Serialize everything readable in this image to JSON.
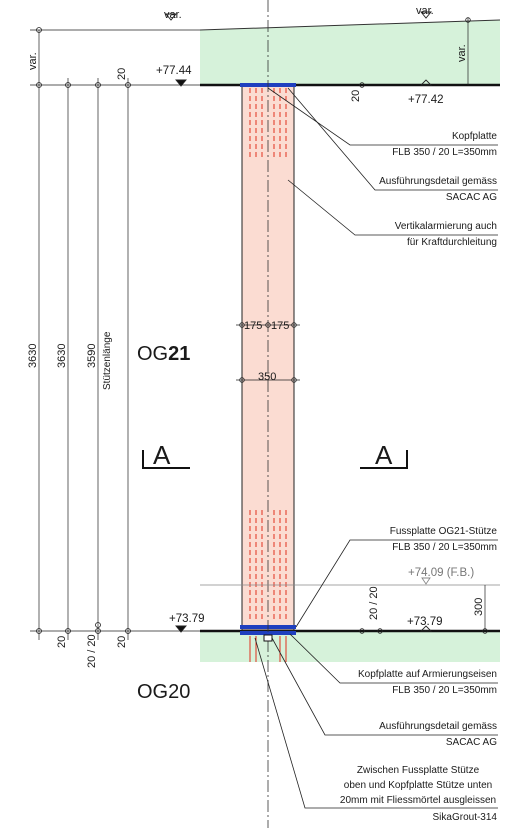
{
  "top_left_var": "var.",
  "top_right_var": "var.",
  "side_var_left": "var.",
  "side_var_right": "var.",
  "level_top_left": "+77.44",
  "level_top_right": "+77.42",
  "level_bottom_left": "+73.79",
  "level_bottom_right": "+73.79",
  "level_fb": "+74.09 (F.B.)",
  "floor_upper_prefix": "OG",
  "floor_upper_num": "21",
  "floor_lower": "OG20",
  "section_left": "A",
  "section_right": "A",
  "dims": {
    "d3630_outer": "3630",
    "d3630_inner": "3630",
    "d3590": "3590",
    "stutzenlaenge": "Stützenlänge",
    "d20_top_left": "20",
    "d20_top_right": "20",
    "d175_left": "175",
    "d175_right": "175",
    "d350": "350",
    "d20_bot_a": "20",
    "d20_20_left": "20 / 20",
    "d20_bot_b": "20",
    "d20_20_right": "20 / 20",
    "d300": "300"
  },
  "annotations": {
    "kopfplatte_1": "Kopfplatte",
    "kopfplatte_2": "FLB 350 / 20 L=350mm",
    "ausf1_1": "Ausführungsdetail gemäss",
    "ausf1_2": "SACAC AG",
    "vert_1": "Vertikalarmierung auch",
    "vert_2": "für Kraftdurchleitung",
    "fuss_1": "Fussplatte OG21-Stütze",
    "fuss_2": "FLB 350 / 20 L=350mm",
    "kopfarm_1": "Kopfplatte auf Armierungseisen",
    "kopfarm_2": "FLB 350 / 20 L=350mm",
    "ausf2_1": "Ausführungsdetail gemäss",
    "ausf2_2": "SACAC AG",
    "mortar_1": "Zwischen Fussplatte Stütze",
    "mortar_2": "oben und Kopfplatte Stütze unten",
    "mortar_3": "20mm mit Fliessmörtel ausgleissen",
    "mortar_4": "SikaGrout-314"
  },
  "colors": {
    "slab_green": "#d6f2da",
    "column_fill": "#fbdcd2",
    "rebar_red": "#e0301e",
    "plate_blue": "#1f3fbf",
    "line_dark": "#111111"
  }
}
